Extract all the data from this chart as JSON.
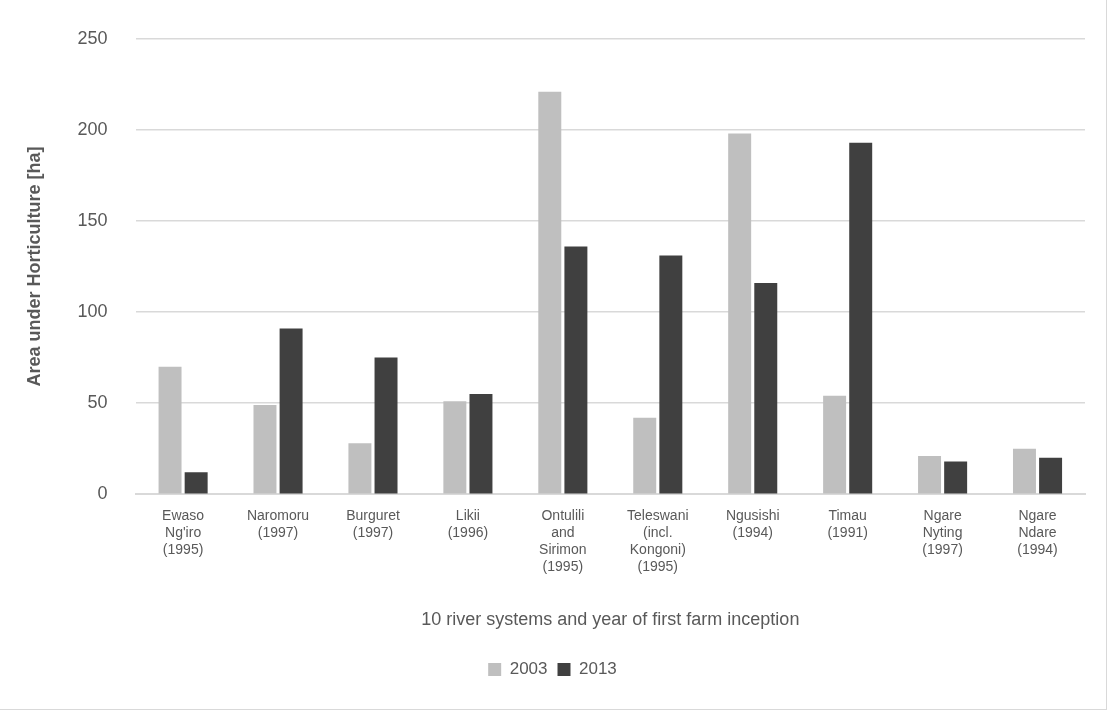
{
  "chart_data": {
    "type": "bar",
    "xlabel": "10 river systems and year of first farm inception",
    "ylabel": "Area under Horticulture [ha]",
    "categories": [
      "Ewaso Ng'iro (1995)",
      "Naromoru (1997)",
      "Burguret (1997)",
      "Likii (1996)",
      "Ontulili and Sirimon (1995)",
      "Teleswani (incl. Kongoni) (1995)",
      "Ngusishi (1994)",
      "Timau (1991)",
      "Ngare Nyting (1997)",
      "Ngare Ndare (1994)"
    ],
    "series": [
      {
        "name": "2003",
        "color": "#bfbfbf",
        "values": [
          70,
          49,
          28,
          51,
          221,
          42,
          198,
          54,
          21,
          25
        ]
      },
      {
        "name": "2013",
        "color": "#404040",
        "values": [
          12,
          91,
          75,
          55,
          136,
          131,
          116,
          193,
          18,
          20
        ]
      }
    ],
    "ylim": [
      0,
      250
    ],
    "yticks": [
      0,
      50,
      100,
      150,
      200,
      250
    ],
    "grid": "y",
    "legend": "bottom"
  }
}
